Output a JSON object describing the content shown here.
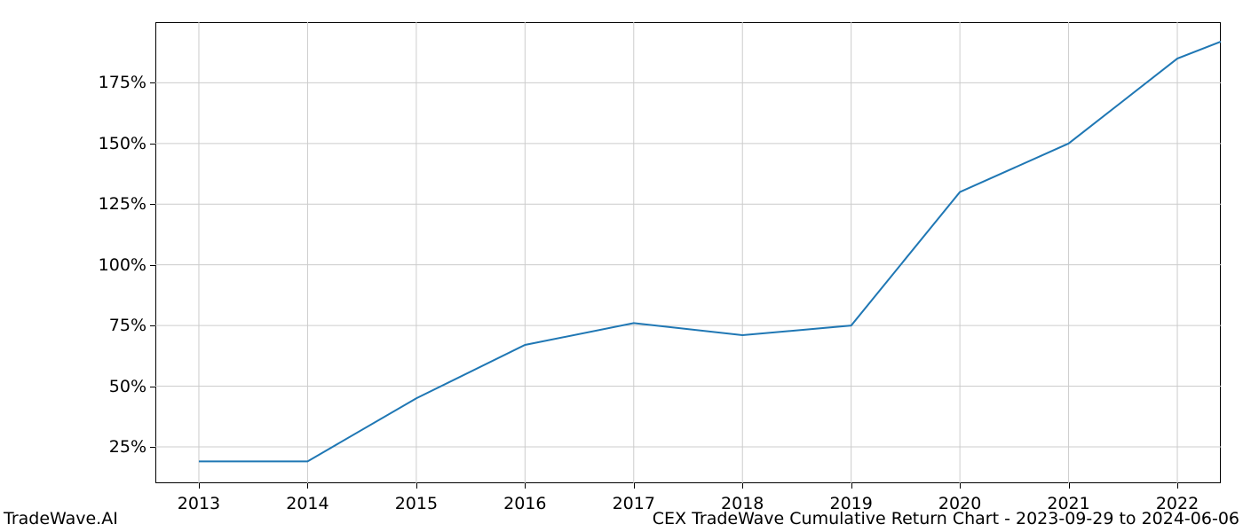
{
  "chart": {
    "type": "line",
    "line_color": "#1f77b4",
    "line_width": 2,
    "background_color": "#ffffff",
    "grid_color": "#cccccc",
    "axis_color": "#000000",
    "tick_fontsize": 19,
    "footer_fontsize": 19,
    "x": {
      "min": 2012.6,
      "max": 2022.4,
      "ticks": [
        2013,
        2014,
        2015,
        2016,
        2017,
        2018,
        2019,
        2020,
        2021,
        2022
      ],
      "tick_labels": [
        "2013",
        "2014",
        "2015",
        "2016",
        "2017",
        "2018",
        "2019",
        "2020",
        "2021",
        "2022"
      ]
    },
    "y": {
      "min": 10,
      "max": 200,
      "ticks": [
        25,
        50,
        75,
        100,
        125,
        150,
        175
      ],
      "tick_labels": [
        "25%",
        "50%",
        "75%",
        "100%",
        "125%",
        "150%",
        "175%"
      ]
    },
    "data": {
      "x": [
        2013,
        2014,
        2015,
        2016,
        2017,
        2018,
        2019,
        2020,
        2021,
        2022,
        2022.4
      ],
      "y": [
        19,
        19,
        45,
        67,
        76,
        71,
        75,
        130,
        150,
        185,
        192
      ]
    }
  },
  "footer": {
    "left": "TradeWave.AI",
    "right": "CEX TradeWave Cumulative Return Chart - 2023-09-29 to 2024-06-06"
  }
}
